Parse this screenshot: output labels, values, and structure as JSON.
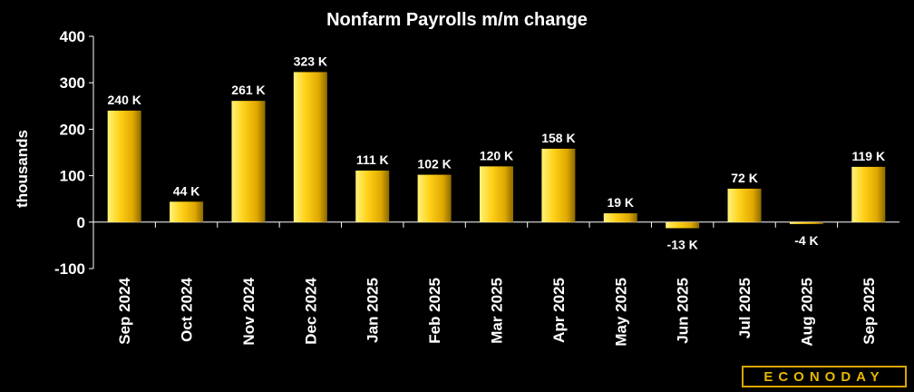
{
  "chart_data": {
    "type": "bar",
    "title": "Nonfarm Payrolls m/m change",
    "ylabel": "thousands",
    "xlabel": "",
    "ylim": [
      -100,
      400
    ],
    "yticks": [
      400,
      300,
      200,
      100,
      0,
      -100
    ],
    "grid": false,
    "categories": [
      "Sep 2024",
      "Oct 2024",
      "Nov 2024",
      "Dec 2024",
      "Jan 2025",
      "Feb 2025",
      "Mar 2025",
      "Apr 2025",
      "May 2025",
      "Jun 2025",
      "Jul 2025",
      "Aug 2025",
      "Sep 2025"
    ],
    "values": [
      240,
      44,
      261,
      323,
      111,
      102,
      120,
      158,
      19,
      -13,
      72,
      -4,
      119
    ],
    "data_labels": [
      "240 K",
      "44 K",
      "261 K",
      "323 K",
      "111 K",
      "102 K",
      "120 K",
      "158 K",
      "19 K",
      "-13 K",
      "72 K",
      "-4 K",
      "119 K"
    ],
    "colors": {
      "background": "#000000",
      "bar_light": "#ffe34d",
      "bar_dark": "#a07c00",
      "text": "#ffffff"
    }
  },
  "brand": {
    "logo_text": "ECONODAY"
  }
}
